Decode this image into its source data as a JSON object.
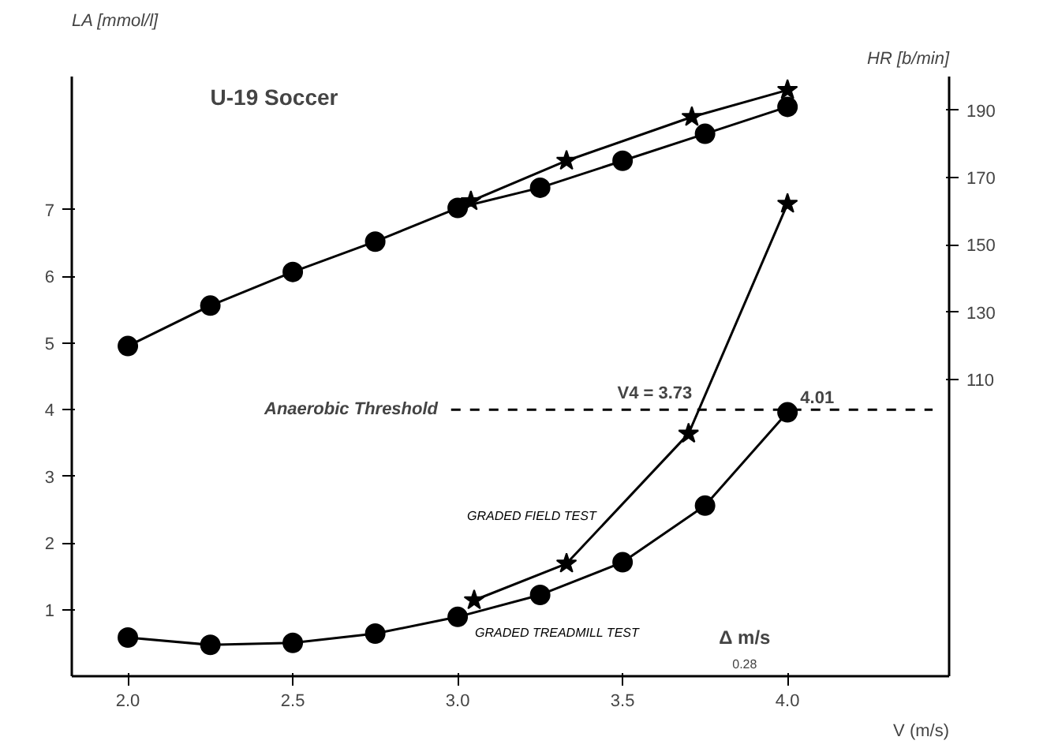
{
  "chart_data": {
    "type": "line",
    "title": "U-19 Soccer",
    "xlabel": "V (m/s)",
    "ylabel": "LA [mmol/l]",
    "y2label": "HR [b/min]",
    "xlim": [
      1.83,
      4.49
    ],
    "xticks": [
      {
        "value": 2,
        "label": "2.0"
      },
      2.5,
      {
        "value": 3,
        "label": "3.0"
      },
      3.5,
      {
        "value": 4,
        "label": "4.0"
      }
    ],
    "ylim": [
      0,
      9
    ],
    "yticks": [
      1,
      2,
      3,
      4,
      5,
      6,
      7
    ],
    "y2lim": [
      22,
      200
    ],
    "y2ticks": [
      110,
      130,
      150,
      170,
      190
    ],
    "grid": false,
    "legend": false,
    "line_style": "solid",
    "series": [
      {
        "axis": "y2",
        "marker": "star",
        "color": "#000000",
        "x": [
          3.04,
          3.33,
          3.71,
          4.0
        ],
        "values": [
          163,
          175,
          188,
          196
        ]
      },
      {
        "axis": "y2",
        "marker": "circle",
        "color": "#000000",
        "x": [
          2.0,
          2.25,
          2.5,
          2.75,
          3.0,
          3.25,
          3.5,
          3.75,
          4.0
        ],
        "values": [
          120,
          132,
          142,
          151,
          161,
          167,
          175,
          183,
          191
        ]
      },
      {
        "name": "GRADED FIELD TEST",
        "marker": "star",
        "color": "#000000",
        "x": [
          3.05,
          3.33,
          3.7,
          4.0
        ],
        "values": [
          1.14,
          1.69,
          3.64,
          7.09
        ]
      },
      {
        "name": "GRADED TREADMILL TEST",
        "marker": "circle",
        "color": "#000000",
        "x": [
          2.0,
          2.25,
          2.5,
          2.75,
          3.0,
          3.25,
          3.5,
          3.75,
          4.0
        ],
        "values": [
          0.58,
          0.47,
          0.5,
          0.64,
          0.89,
          1.22,
          1.71,
          2.56,
          3.96
        ]
      }
    ],
    "ref_lines": [
      {
        "axis": "y",
        "value": 4,
        "label": "Anaerobic Threshold",
        "line_style": "dashed",
        "color": "#000000"
      }
    ],
    "annotations": [
      {
        "text": "V4 = 3.73",
        "x": 3.73,
        "y": 4
      },
      {
        "text": "4.01",
        "x": 4.01,
        "y": 4
      },
      "Δ m/s",
      "0.28"
    ]
  }
}
